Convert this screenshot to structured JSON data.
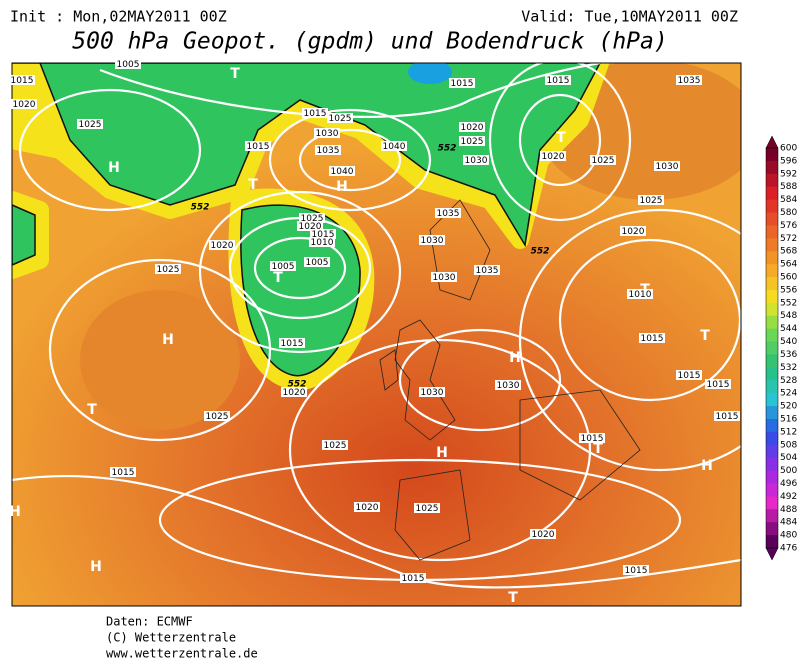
{
  "header": {
    "init": "Init : Mon,02MAY2011 00Z",
    "valid": "Valid: Tue,10MAY2011 00Z",
    "title": "500 hPa Geopot. (gpdm) und Bodendruck (hPa)"
  },
  "map": {
    "isobar_labels": [
      "1015",
      "1020",
      "1005",
      "1025",
      "1015",
      "1015",
      "1025",
      "1030",
      "1035",
      "1040",
      "1040",
      "1015",
      "1020",
      "1025",
      "1030",
      "1015",
      "1020",
      "1025",
      "1030",
      "1025",
      "1020",
      "1035",
      "1025",
      "1020",
      "1015",
      "1010",
      "1005",
      "1005",
      "1020",
      "1025",
      "1035",
      "1030",
      "1030",
      "1035",
      "1010",
      "1015",
      "1015",
      "1015",
      "1015",
      "1015",
      "1015",
      "1020",
      "1030",
      "1030",
      "1025",
      "1025",
      "1015",
      "1020",
      "1025",
      "1020",
      "1015",
      "1015"
    ],
    "height_labels": [
      "552",
      "552",
      "552",
      "552"
    ],
    "pressure_centers": [
      "T",
      "H",
      "T",
      "H",
      "T",
      "T",
      "H",
      "T",
      "H",
      "T",
      "H",
      "T",
      "H",
      "H",
      "H",
      "T",
      "T"
    ]
  },
  "colorbar": {
    "labels": [
      600,
      596,
      592,
      588,
      584,
      580,
      576,
      572,
      568,
      564,
      560,
      556,
      552,
      548,
      544,
      540,
      536,
      532,
      528,
      524,
      520,
      516,
      512,
      508,
      504,
      500,
      496,
      492,
      488,
      484,
      480,
      476
    ]
  },
  "footer": {
    "source": "Daten: ECMWF",
    "copyright": "(C) Wetterzentrale",
    "url": "www.wetterzentrale.de"
  }
}
